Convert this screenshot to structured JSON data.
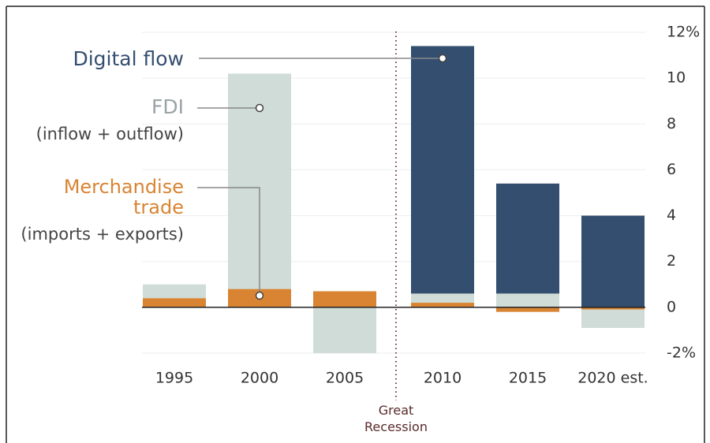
{
  "chart_data": {
    "type": "stacked_bar",
    "categories": [
      "1995",
      "2000",
      "2005",
      "2010",
      "2015",
      "2020 est."
    ],
    "series": [
      {
        "name": "Merchandise trade",
        "color": "#d98433",
        "values": [
          0.4,
          0.8,
          0.7,
          0.2,
          -0.2,
          -0.1
        ]
      },
      {
        "name": "FDI",
        "color": "#cfdcd7",
        "values": [
          0.6,
          9.4,
          -2.0,
          0.4,
          0.6,
          -0.8
        ]
      },
      {
        "name": "Digital flow",
        "color": "#344e70",
        "values": [
          null,
          null,
          null,
          10.8,
          4.8,
          4.0
        ]
      }
    ],
    "ylim": [
      -2,
      12
    ],
    "yticks": [
      {
        "value": -2,
        "label": "-2%"
      },
      0,
      2,
      4,
      6,
      8,
      10,
      {
        "value": 12,
        "label": "12%"
      }
    ],
    "grid": true,
    "annotations": {
      "fdi_note": "(inflow + outflow)",
      "merch_note": "(imports + exports)",
      "recession": "Great Recession"
    }
  }
}
